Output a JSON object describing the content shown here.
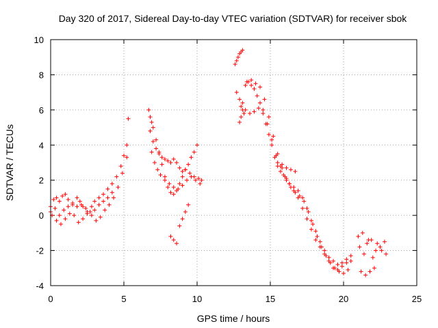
{
  "chart_data": {
    "type": "scatter",
    "title": "Day 320 of 2017, Sidereal Day-to-day VTEC variation (SDTVAR) for receiver sbok",
    "xlabel": "GPS time / hours",
    "ylabel": "SDTVAR / TECUs",
    "xlim": [
      0,
      25
    ],
    "ylim": [
      -4,
      10
    ],
    "x_ticks": [
      0,
      5,
      10,
      15,
      20,
      25
    ],
    "y_ticks": [
      -4,
      -2,
      0,
      2,
      4,
      6,
      8,
      10
    ],
    "grid": true,
    "marker": "+",
    "color": "#ff0000",
    "series": [
      {
        "name": "SDTVAR",
        "x": [
          0.0,
          0.2,
          0.4,
          0.6,
          0.8,
          1.0,
          1.2,
          1.5,
          1.8,
          2.0,
          2.2,
          2.5,
          2.8,
          3.0,
          3.3,
          3.6,
          3.9,
          4.2,
          4.5,
          4.8,
          5.0,
          5.2,
          0.0,
          0.3,
          0.6,
          0.9,
          1.2,
          1.5,
          1.8,
          2.1,
          2.4,
          2.7,
          3.0,
          3.3,
          3.6,
          3.9,
          4.2,
          0.1,
          0.4,
          0.7,
          1.0,
          1.3,
          1.6,
          1.9,
          2.2,
          2.5,
          2.8,
          3.1,
          3.4,
          3.7,
          4.0,
          4.3,
          4.6,
          4.9,
          5.2,
          5.3,
          6.7,
          6.8,
          6.9,
          7.0,
          7.2,
          7.4,
          7.6,
          7.8,
          8.0,
          8.2,
          8.4,
          8.6,
          8.8,
          9.0,
          9.2,
          9.4,
          9.6,
          9.8,
          10.0,
          6.8,
          7.0,
          7.2,
          7.4,
          7.6,
          7.8,
          8.0,
          8.2,
          8.4,
          8.6,
          8.8,
          9.0,
          9.2,
          9.5,
          9.8,
          10.1,
          10.3,
          6.9,
          7.1,
          7.3,
          7.5,
          7.8,
          8.1,
          8.4,
          8.7,
          9.0,
          9.3,
          9.6,
          9.9,
          10.2,
          8.2,
          8.4,
          8.6,
          8.8,
          9.0,
          9.2,
          9.4,
          12.6,
          12.7,
          12.8,
          12.9,
          13.0,
          13.1,
          12.9,
          13.0,
          13.1,
          13.2,
          12.7,
          12.9,
          13.1,
          13.3,
          13.5,
          13.7,
          13.9,
          14.1,
          14.3,
          14.5,
          14.7,
          14.9,
          15.1,
          15.3,
          15.5,
          15.7,
          15.9,
          16.1,
          16.3,
          16.6,
          16.9,
          17.2,
          17.5,
          17.8,
          18.1,
          18.4,
          18.7,
          19.0,
          19.3,
          19.6,
          19.9,
          20.2,
          20.5,
          13.0,
          13.3,
          13.6,
          13.9,
          14.2,
          14.5,
          14.8,
          15.1,
          15.4,
          15.7,
          16.0,
          16.3,
          16.6,
          16.9,
          17.2,
          17.5,
          17.8,
          18.1,
          18.4,
          18.7,
          19.0,
          19.3,
          19.6,
          19.9,
          20.2,
          20.5,
          13.4,
          13.7,
          14.0,
          14.3,
          14.6,
          14.9,
          15.2,
          15.5,
          15.8,
          16.1,
          16.4,
          16.7,
          17.0,
          17.3,
          17.6,
          17.9,
          18.2,
          18.5,
          18.8,
          19.1,
          19.4,
          19.7,
          20.0,
          20.3,
          15.5,
          15.8,
          16.1,
          16.4,
          16.7,
          21.0,
          21.3,
          21.6,
          21.9,
          22.2,
          22.5,
          22.8,
          21.1,
          21.4,
          21.7,
          22.0,
          22.3,
          22.6,
          22.9,
          21.2,
          21.5,
          21.8,
          22.1
        ],
        "y": [
          0.5,
          0.9,
          1.0,
          0.8,
          1.1,
          1.2,
          0.9,
          0.6,
          1.0,
          0.8,
          0.5,
          0.2,
          0.5,
          0.8,
          1.0,
          1.2,
          1.5,
          1.8,
          2.2,
          2.8,
          3.4,
          4.0,
          0.2,
          0.4,
          0.0,
          0.3,
          0.5,
          0.7,
          0.5,
          0.6,
          0.4,
          0.2,
          0.3,
          0.6,
          0.8,
          1.0,
          1.3,
          0.0,
          -0.3,
          -0.5,
          -0.2,
          0.1,
          0.0,
          -0.4,
          -0.2,
          0.1,
          0.0,
          -0.3,
          -0.1,
          0.3,
          0.6,
          1.0,
          1.6,
          2.4,
          3.3,
          5.5,
          6.0,
          5.6,
          5.3,
          5.0,
          4.3,
          3.6,
          2.9,
          2.2,
          1.6,
          1.3,
          1.2,
          1.4,
          1.8,
          2.2,
          2.6,
          2.9,
          3.3,
          3.6,
          4.0,
          4.8,
          4.2,
          3.8,
          3.5,
          3.3,
          3.2,
          3.1,
          3.0,
          3.2,
          3.0,
          2.7,
          2.5,
          2.6,
          2.4,
          2.2,
          2.1,
          2.0,
          3.6,
          3.0,
          2.6,
          2.3,
          2.0,
          1.8,
          1.6,
          1.5,
          1.7,
          2.0,
          2.2,
          2.0,
          1.8,
          -1.2,
          -1.4,
          -1.6,
          -0.6,
          -0.2,
          0.2,
          0.6,
          8.6,
          8.8,
          9.0,
          9.2,
          9.3,
          9.4,
          5.3,
          5.6,
          6.0,
          5.8,
          7.0,
          6.6,
          6.4,
          7.4,
          7.6,
          7.4,
          7.2,
          6.8,
          6.4,
          5.8,
          5.2,
          4.6,
          4.0,
          3.3,
          2.8,
          2.5,
          2.3,
          2.0,
          1.8,
          1.4,
          1.0,
          0.4,
          -0.2,
          -0.8,
          -1.4,
          -1.8,
          -2.2,
          -2.6,
          -3.0,
          -3.1,
          -2.9,
          -2.7,
          -2.6,
          6.2,
          6.0,
          5.8,
          5.9,
          6.1,
          6.0,
          5.2,
          4.3,
          3.4,
          2.8,
          2.2,
          1.8,
          1.6,
          1.4,
          1.0,
          0.4,
          -0.3,
          -0.9,
          -1.5,
          -2.0,
          -2.4,
          -2.6,
          -2.8,
          -2.7,
          -2.5,
          -2.3,
          7.6,
          7.7,
          7.5,
          7.3,
          6.6,
          5.6,
          4.5,
          3.5,
          2.7,
          2.1,
          1.6,
          1.3,
          1.1,
          0.8,
          0.2,
          -0.5,
          -1.2,
          -1.8,
          -2.3,
          -2.7,
          -3.0,
          -3.2,
          -3.3,
          -3.1,
          3.0,
          2.9,
          2.7,
          2.6,
          2.5,
          -1.2,
          -1.0,
          -1.6,
          -1.4,
          -2.0,
          -1.8,
          -1.5,
          -1.8,
          -2.2,
          -1.4,
          -2.4,
          -1.6,
          -2.0,
          -2.2,
          -3.2,
          -3.4,
          -3.2,
          -3.0
        ]
      }
    ]
  }
}
